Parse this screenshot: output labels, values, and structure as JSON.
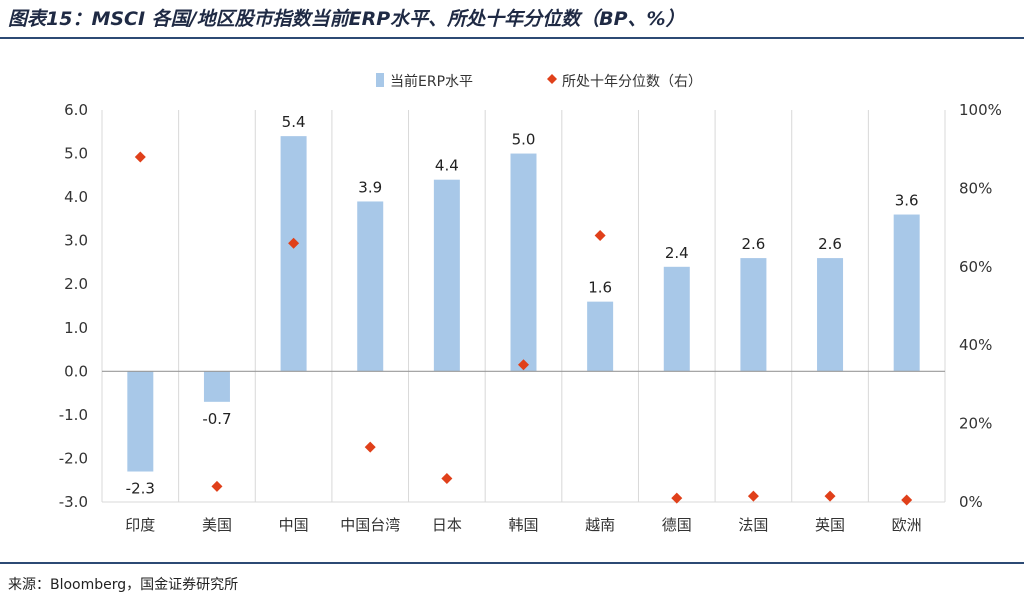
{
  "header": {
    "title": "图表15：MSCI 各国/地区股市指数当前ERP水平、所处十年分位数（BP、%）"
  },
  "footer": {
    "source": "来源：Bloomberg，国金证券研究所"
  },
  "colors": {
    "bar": "#a8c8e8",
    "marker": "#e0401a",
    "grid": "#d8d8d8",
    "zero": "#999999",
    "rule": "#2c4a74"
  },
  "chart_data": {
    "type": "bar",
    "categories": [
      "印度",
      "美国",
      "中国",
      "中国台湾",
      "日本",
      "韩国",
      "越南",
      "德国",
      "法国",
      "英国",
      "欧洲"
    ],
    "series": [
      {
        "name": "当前ERP水平",
        "type": "bar",
        "axis": "left",
        "values": [
          -2.3,
          -0.7,
          5.4,
          3.9,
          4.4,
          5.0,
          1.6,
          2.4,
          2.6,
          2.6,
          3.6
        ],
        "labels": [
          "-2.3",
          "-0.7",
          "5.4",
          "3.9",
          "4.4",
          "5.0",
          "1.6",
          "2.4",
          "2.6",
          "2.6",
          "3.6"
        ]
      },
      {
        "name": "所处十年分位数（右）",
        "type": "scatter",
        "marker": "diamond",
        "axis": "right",
        "values": [
          88,
          4,
          66,
          14,
          6,
          35,
          68,
          1,
          1.5,
          1.5,
          0.5
        ]
      }
    ],
    "ylim": [
      -3,
      6
    ],
    "yticks": [
      "6.0",
      "5.0",
      "4.0",
      "3.0",
      "2.0",
      "1.0",
      "0.0",
      "-1.0",
      "-2.0",
      "-3.0"
    ],
    "ytick_values": [
      6,
      5,
      4,
      3,
      2,
      1,
      0,
      -1,
      -2,
      -3
    ],
    "y2lim": [
      0,
      100
    ],
    "y2ticks": [
      "100%",
      "80%",
      "60%",
      "40%",
      "20%",
      "0%"
    ],
    "y2tick_values": [
      100,
      80,
      60,
      40,
      20,
      0
    ],
    "legend_position": "top-center",
    "grid": "vertical-separators"
  }
}
